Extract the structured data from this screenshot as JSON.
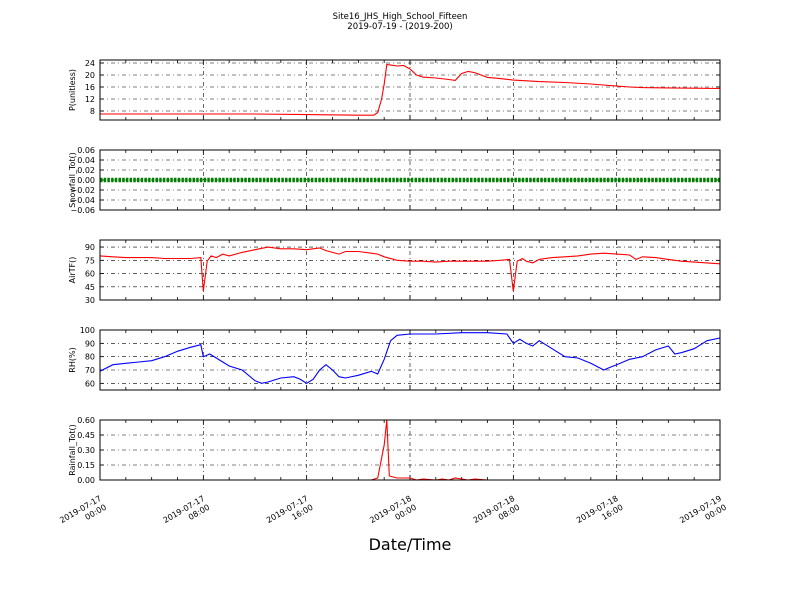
{
  "title": "Site16_JHS_High_School_Fifteen",
  "subtitle": "2019-07-19 - (2019-200)",
  "xlabel": "Date/Time",
  "x_ticks": [
    {
      "line1": "2019-07-17",
      "line2": "00:00",
      "hours": 0
    },
    {
      "line1": "2019-07-17",
      "line2": "08:00",
      "hours": 8
    },
    {
      "line1": "2019-07-17",
      "line2": "16:00",
      "hours": 16
    },
    {
      "line1": "2019-07-18",
      "line2": "00:00",
      "hours": 24
    },
    {
      "line1": "2019-07-18",
      "line2": "08:00",
      "hours": 32
    },
    {
      "line1": "2019-07-18",
      "line2": "16:00",
      "hours": 40
    },
    {
      "line1": "2019-07-19",
      "line2": "00:00",
      "hours": 48
    }
  ],
  "chart_data": [
    {
      "type": "line",
      "ylabel": "P(unitless)",
      "ylim": [
        5,
        25
      ],
      "yticks": [
        "8",
        "12",
        "16",
        "20",
        "24"
      ],
      "ytick_values": [
        8,
        12,
        16,
        20,
        24
      ],
      "color": "#ff0000",
      "grid": true,
      "points": [
        [
          0,
          7
        ],
        [
          8,
          7
        ],
        [
          12,
          7
        ],
        [
          16,
          6.8
        ],
        [
          20,
          6.6
        ],
        [
          21.2,
          6.6
        ],
        [
          21.5,
          7.5
        ],
        [
          21.8,
          12
        ],
        [
          22,
          17
        ],
        [
          22.2,
          23.5
        ],
        [
          22.5,
          23.3
        ],
        [
          23,
          23
        ],
        [
          23.5,
          23.2
        ],
        [
          24,
          22
        ],
        [
          24.5,
          20
        ],
        [
          25,
          19.3
        ],
        [
          26,
          19
        ],
        [
          27,
          18.5
        ],
        [
          27.5,
          18.2
        ],
        [
          28,
          20.5
        ],
        [
          28.5,
          21.2
        ],
        [
          29,
          20.8
        ],
        [
          29.5,
          20
        ],
        [
          30,
          19.2
        ],
        [
          31,
          18.8
        ],
        [
          32,
          18.3
        ],
        [
          34,
          17.8
        ],
        [
          36,
          17.5
        ],
        [
          38,
          17
        ],
        [
          40,
          16.3
        ],
        [
          41,
          16
        ],
        [
          42,
          15.8
        ],
        [
          44,
          15.7
        ],
        [
          46,
          15.6
        ],
        [
          48,
          15.5
        ]
      ]
    },
    {
      "type": "line",
      "ylabel": "Snowfall_Tot()",
      "ylim": [
        -0.06,
        0.06
      ],
      "yticks": [
        "−0.06",
        "−0.04",
        "−0.02",
        "0.00",
        "0.02",
        "0.04",
        "0.06"
      ],
      "ytick_values": [
        -0.06,
        -0.04,
        -0.02,
        0,
        0.02,
        0.04,
        0.06
      ],
      "color": "#008000",
      "grid": true,
      "points": [
        [
          0,
          0
        ],
        [
          48,
          0
        ]
      ]
    },
    {
      "type": "line",
      "ylabel": "AirTF()",
      "ylim": [
        30,
        98
      ],
      "yticks": [
        "30",
        "45",
        "60",
        "75",
        "90"
      ],
      "ytick_values": [
        30,
        45,
        60,
        75,
        90
      ],
      "color": "#ff0000",
      "grid": true,
      "points": [
        [
          0,
          80
        ],
        [
          1,
          79
        ],
        [
          2,
          78
        ],
        [
          3,
          78
        ],
        [
          4,
          78
        ],
        [
          5,
          77
        ],
        [
          6,
          77
        ],
        [
          7,
          77
        ],
        [
          7.8,
          78
        ],
        [
          8,
          40
        ],
        [
          8.3,
          74
        ],
        [
          8.6,
          80
        ],
        [
          9,
          78
        ],
        [
          9.5,
          82
        ],
        [
          10,
          80
        ],
        [
          11,
          84
        ],
        [
          12,
          87
        ],
        [
          13,
          90
        ],
        [
          14,
          88
        ],
        [
          15,
          88
        ],
        [
          16,
          87
        ],
        [
          17,
          89
        ],
        [
          17.5,
          86
        ],
        [
          18,
          84
        ],
        [
          18.5,
          82
        ],
        [
          19,
          85
        ],
        [
          20,
          85
        ],
        [
          21,
          83
        ],
        [
          21.5,
          82
        ],
        [
          22,
          79
        ],
        [
          23,
          75
        ],
        [
          24,
          74
        ],
        [
          25,
          74
        ],
        [
          26,
          73
        ],
        [
          27,
          74
        ],
        [
          28,
          74
        ],
        [
          29,
          74
        ],
        [
          30,
          74
        ],
        [
          31,
          75
        ],
        [
          31.7,
          76
        ],
        [
          32,
          40
        ],
        [
          32.3,
          74
        ],
        [
          32.7,
          77
        ],
        [
          33,
          74
        ],
        [
          33.5,
          72
        ],
        [
          34,
          76
        ],
        [
          35,
          78
        ],
        [
          36,
          79
        ],
        [
          37,
          80
        ],
        [
          38,
          82
        ],
        [
          39,
          83
        ],
        [
          40,
          82
        ],
        [
          41,
          81
        ],
        [
          41.5,
          76
        ],
        [
          42,
          79
        ],
        [
          43,
          78
        ],
        [
          44,
          76
        ],
        [
          45,
          74
        ],
        [
          46,
          73
        ],
        [
          47,
          72
        ],
        [
          48,
          71
        ]
      ]
    },
    {
      "type": "line",
      "ylabel": "RH(%)",
      "ylim": [
        55,
        100
      ],
      "yticks": [
        "60",
        "70",
        "80",
        "90",
        "100"
      ],
      "ytick_values": [
        60,
        70,
        80,
        90,
        100
      ],
      "color": "#0000ff",
      "grid": true,
      "points": [
        [
          0,
          69
        ],
        [
          1,
          74
        ],
        [
          2,
          75
        ],
        [
          3,
          76
        ],
        [
          4,
          77
        ],
        [
          5,
          80
        ],
        [
          6,
          84
        ],
        [
          7,
          87
        ],
        [
          7.8,
          89
        ],
        [
          8,
          80
        ],
        [
          8.5,
          82
        ],
        [
          9,
          79
        ],
        [
          10,
          73
        ],
        [
          11,
          70
        ],
        [
          12,
          62
        ],
        [
          12.5,
          60
        ],
        [
          13,
          61
        ],
        [
          14,
          64
        ],
        [
          15,
          65
        ],
        [
          15.5,
          63
        ],
        [
          16,
          60
        ],
        [
          16.5,
          63
        ],
        [
          17,
          70
        ],
        [
          17.5,
          74
        ],
        [
          18,
          70
        ],
        [
          18.5,
          65
        ],
        [
          19,
          64
        ],
        [
          20,
          66
        ],
        [
          21,
          69
        ],
        [
          21.5,
          67
        ],
        [
          22,
          78
        ],
        [
          22.5,
          92
        ],
        [
          23,
          96
        ],
        [
          24,
          97
        ],
        [
          26,
          97
        ],
        [
          28,
          98
        ],
        [
          30,
          98
        ],
        [
          31.5,
          97
        ],
        [
          32,
          90
        ],
        [
          32.5,
          93
        ],
        [
          33,
          90
        ],
        [
          33.5,
          88
        ],
        [
          34,
          92
        ],
        [
          35,
          86
        ],
        [
          36,
          80
        ],
        [
          37,
          79
        ],
        [
          38,
          75
        ],
        [
          39,
          70
        ],
        [
          39.5,
          72
        ],
        [
          40,
          74
        ],
        [
          41,
          78
        ],
        [
          42,
          80
        ],
        [
          43,
          85
        ],
        [
          44,
          88
        ],
        [
          44.5,
          82
        ],
        [
          45,
          83
        ],
        [
          46,
          86
        ],
        [
          47,
          92
        ],
        [
          48,
          94
        ]
      ]
    },
    {
      "type": "line",
      "ylabel": "Rainfall_Tot()",
      "ylim": [
        0,
        0.6
      ],
      "yticks": [
        "0.00",
        "0.15",
        "0.30",
        "0.45",
        "0.60"
      ],
      "ytick_values": [
        0,
        0.15,
        0.3,
        0.45,
        0.6
      ],
      "color": "#ff0000",
      "grid": true,
      "points": [
        [
          0,
          0
        ],
        [
          21,
          0
        ],
        [
          21.5,
          0.02
        ],
        [
          22,
          0.35
        ],
        [
          22.2,
          0.6
        ],
        [
          22.4,
          0.04
        ],
        [
          23,
          0.02
        ],
        [
          24,
          0.02
        ],
        [
          24.5,
          0
        ],
        [
          25,
          0.01
        ],
        [
          26,
          0
        ],
        [
          26.5,
          0.01
        ],
        [
          27,
          0
        ],
        [
          27.5,
          0.02
        ],
        [
          28,
          0.01
        ],
        [
          28.5,
          0
        ],
        [
          29,
          0.01
        ],
        [
          30,
          0
        ],
        [
          48,
          0
        ]
      ]
    }
  ]
}
